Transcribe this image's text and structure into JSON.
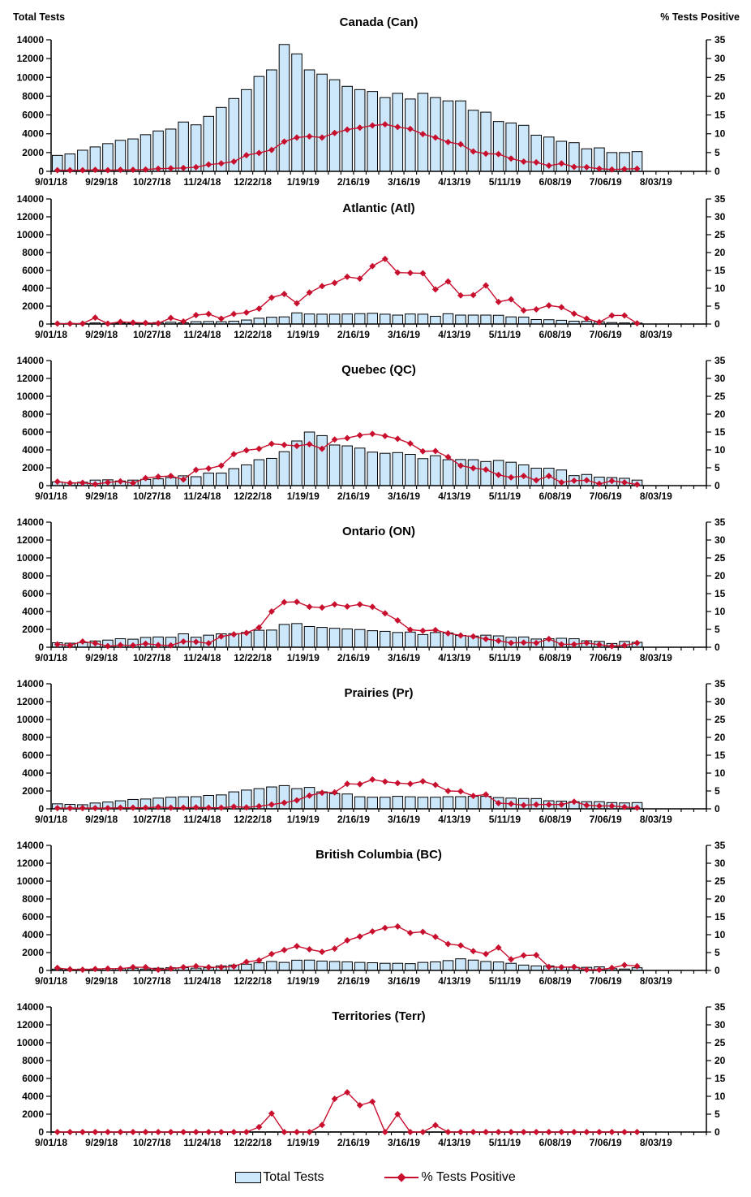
{
  "colors": {
    "background": "#FFFFFF",
    "bar_fill": "#CDE7FA",
    "bar_stroke": "#000000",
    "line": "#C8102E",
    "axis": "#000000",
    "text": "#000000"
  },
  "legend": {
    "total_tests_label": "Total Tests",
    "pct_positive_label": "% Tests Positive"
  },
  "axis_config": {
    "left_title": "Total Tests",
    "right_title": "% Tests Positive",
    "left_min": 0,
    "left_max": 14000,
    "left_tick_step": 2000,
    "right_min": 0,
    "right_max": 35,
    "right_tick_step": 5,
    "weeks_total": 52,
    "x_tick_labels": [
      "9/01/18",
      "9/29/18",
      "10/27/18",
      "11/24/18",
      "12/22/18",
      "1/19/19",
      "2/16/19",
      "3/16/19",
      "4/13/19",
      "5/11/19",
      "6/08/19",
      "7/06/19",
      "8/03/19"
    ],
    "week_start_dates": [
      "9/01/18",
      "9/08/18",
      "9/15/18",
      "9/22/18",
      "9/29/18",
      "10/06/18",
      "10/13/18",
      "10/20/18",
      "10/27/18",
      "11/03/18",
      "11/10/18",
      "11/17/18",
      "11/24/18",
      "12/01/18",
      "12/08/18",
      "12/15/18",
      "12/22/18",
      "12/29/18",
      "1/05/19",
      "1/12/19",
      "1/19/19",
      "1/26/19",
      "2/02/19",
      "2/09/19",
      "2/16/19",
      "2/23/19",
      "3/02/19",
      "3/09/19",
      "3/16/19",
      "3/23/19",
      "3/30/19",
      "4/06/19",
      "4/13/19",
      "4/20/19",
      "4/27/19",
      "5/04/19",
      "5/11/19",
      "5/18/19",
      "5/25/19",
      "6/01/19",
      "6/08/19",
      "6/15/19",
      "6/22/19",
      "6/29/19",
      "7/06/19",
      "7/13/19",
      "7/20/19"
    ]
  },
  "chart_data": [
    {
      "type": "bar",
      "title": "Canada (Can)",
      "bar_series_name": "Total Tests",
      "line_series_name": "% Tests Positive",
      "bars": [
        1700,
        1850,
        2250,
        2600,
        2950,
        3300,
        3450,
        3900,
        4300,
        4500,
        5250,
        4950,
        5850,
        6800,
        7750,
        8700,
        10100,
        10800,
        13500,
        12500,
        10800,
        10350,
        9750,
        9050,
        8700,
        8500,
        7850,
        8300,
        7700,
        8300,
        7850,
        7500,
        7500,
        6500,
        6300,
        5300,
        5150,
        4900,
        3850,
        3650,
        3200,
        3050,
        2400,
        2500,
        2000,
        2000,
        2100
      ],
      "line": [
        0.3,
        0.3,
        0.3,
        0.4,
        0.3,
        0.4,
        0.4,
        0.5,
        0.7,
        0.8,
        0.9,
        1.1,
        1.8,
        2.1,
        2.6,
        4.3,
        4.9,
        5.7,
        7.9,
        9.0,
        9.3,
        9.0,
        10.2,
        11.1,
        11.6,
        12.2,
        12.5,
        11.8,
        11.3,
        9.9,
        9.0,
        7.8,
        7.2,
        5.3,
        4.7,
        4.6,
        3.4,
        2.6,
        2.4,
        1.5,
        2.1,
        1.2,
        1.1,
        0.7,
        0.5,
        0.6,
        0.7
      ]
    },
    {
      "type": "bar",
      "title": "Atlantic (Atl)",
      "bar_series_name": "Total Tests",
      "line_series_name": "% Tests Positive",
      "bars": [
        60,
        70,
        60,
        120,
        70,
        110,
        90,
        90,
        160,
        200,
        130,
        260,
        280,
        260,
        310,
        450,
        650,
        760,
        800,
        1250,
        1120,
        1100,
        1100,
        1120,
        1160,
        1200,
        1100,
        1000,
        1120,
        1100,
        870,
        1150,
        1000,
        1000,
        1000,
        980,
        800,
        780,
        500,
        480,
        420,
        320,
        300,
        250,
        160,
        120,
        110
      ],
      "line": [
        0.1,
        0.1,
        0.1,
        1.8,
        0.1,
        0.6,
        0.4,
        0.3,
        0.2,
        1.7,
        0.7,
        2.5,
        2.8,
        1.5,
        2.8,
        3.2,
        4.3,
        7.4,
        8.4,
        5.8,
        8.8,
        10.6,
        11.5,
        13.2,
        12.7,
        16.2,
        18.2,
        14.4,
        14.3,
        14.2,
        9.7,
        11.9,
        8.0,
        8.1,
        10.8,
        6.2,
        6.9,
        3.8,
        4.1,
        5.2,
        4.7,
        2.9,
        1.5,
        0.5,
        2.4,
        2.4,
        0.2
      ]
    },
    {
      "type": "bar",
      "title": "Quebec (QC)",
      "bar_series_name": "Total Tests",
      "line_series_name": "% Tests Positive",
      "bars": [
        420,
        320,
        380,
        620,
        650,
        520,
        620,
        700,
        760,
        900,
        1100,
        1000,
        1400,
        1400,
        1900,
        2320,
        2900,
        3050,
        3800,
        5000,
        6000,
        5600,
        4550,
        4450,
        4200,
        3750,
        3620,
        3700,
        3500,
        3020,
        3350,
        2900,
        2920,
        2900,
        2700,
        2820,
        2620,
        2320,
        1950,
        1950,
        1750,
        1120,
        1250,
        950,
        900,
        820,
        620
      ],
      "line": [
        1.1,
        0.7,
        0.8,
        0.4,
        0.9,
        1.2,
        0.7,
        2.1,
        2.5,
        2.7,
        1.7,
        4.4,
        4.8,
        5.6,
        8.8,
        9.9,
        10.3,
        11.7,
        11.4,
        11.1,
        11.6,
        10.3,
        12.9,
        13.3,
        14.1,
        14.5,
        13.9,
        13.1,
        11.8,
        9.6,
        9.7,
        8.0,
        5.6,
        4.9,
        4.5,
        3.0,
        2.3,
        2.7,
        1.5,
        2.7,
        0.9,
        1.4,
        1.5,
        0.5,
        1.3,
        0.9,
        0.3
      ]
    },
    {
      "type": "bar",
      "title": "Ontario (ON)",
      "bar_series_name": "Total Tests",
      "line_series_name": "% Tests Positive",
      "bars": [
        500,
        450,
        520,
        700,
        800,
        950,
        900,
        1100,
        1150,
        1120,
        1500,
        1120,
        1350,
        1500,
        1520,
        1650,
        1900,
        1920,
        2550,
        2650,
        2320,
        2220,
        2120,
        2050,
        1980,
        1850,
        1780,
        1650,
        1700,
        1420,
        1650,
        1600,
        1320,
        1250,
        1350,
        1270,
        1120,
        1150,
        920,
        950,
        1000,
        950,
        720,
        650,
        420,
        650,
        550
      ],
      "line": [
        0.8,
        0.5,
        1.6,
        1.1,
        0.3,
        0.6,
        0.5,
        1.0,
        0.6,
        0.5,
        1.6,
        1.5,
        1.1,
        3.0,
        3.6,
        4.0,
        5.5,
        10.0,
        12.6,
        12.7,
        11.3,
        11.1,
        12.0,
        11.4,
        12.0,
        11.3,
        9.5,
        7.5,
        4.9,
        4.6,
        4.8,
        3.9,
        3.3,
        3.0,
        2.3,
        1.8,
        1.2,
        1.3,
        1.2,
        2.3,
        0.8,
        0.8,
        1.2,
        0.7,
        0.3,
        0.5,
        1.2
      ]
    },
    {
      "type": "bar",
      "title": "Prairies (Pr)",
      "bar_series_name": "Total Tests",
      "line_series_name": "% Tests Positive",
      "bars": [
        560,
        500,
        460,
        650,
        760,
        900,
        1050,
        1100,
        1200,
        1300,
        1350,
        1360,
        1500,
        1560,
        1900,
        2100,
        2260,
        2450,
        2600,
        2260,
        2400,
        1900,
        1700,
        1660,
        1350,
        1300,
        1300,
        1400,
        1350,
        1300,
        1300,
        1360,
        1360,
        1400,
        1400,
        1260,
        1200,
        1160,
        1150,
        900,
        860,
        800,
        800,
        800,
        700,
        660,
        700
      ],
      "line": [
        0.2,
        0.2,
        0.2,
        0.2,
        0.2,
        0.3,
        0.3,
        0.3,
        0.5,
        0.3,
        0.3,
        0.4,
        0.3,
        0.3,
        0.6,
        0.4,
        0.7,
        1.2,
        1.7,
        2.4,
        3.7,
        4.5,
        4.6,
        7.0,
        6.9,
        8.2,
        7.6,
        7.2,
        7.0,
        7.7,
        6.7,
        5.0,
        4.9,
        3.6,
        4.0,
        1.6,
        1.4,
        1.0,
        1.2,
        1.2,
        1.2,
        2.0,
        1.0,
        0.8,
        0.8,
        0.5,
        0.3
      ]
    },
    {
      "type": "bar",
      "title": "British Columbia (BC)",
      "bar_series_name": "Total Tests",
      "line_series_name": "% Tests Positive",
      "bars": [
        150,
        110,
        150,
        160,
        200,
        210,
        250,
        160,
        250,
        300,
        310,
        260,
        300,
        500,
        600,
        700,
        850,
        1000,
        900,
        1150,
        1160,
        1050,
        1000,
        960,
        900,
        860,
        800,
        800,
        760,
        900,
        960,
        1100,
        1300,
        1160,
        1000,
        950,
        800,
        600,
        500,
        500,
        360,
        350,
        350,
        400,
        200,
        160,
        300
      ],
      "line": [
        0.7,
        0.3,
        0.2,
        0.4,
        0.5,
        0.5,
        0.9,
        0.9,
        0.2,
        0.5,
        0.9,
        1.2,
        0.9,
        0.9,
        1.1,
        2.4,
        2.8,
        4.6,
        5.7,
        6.8,
        5.9,
        5.2,
        6.1,
        8.4,
        9.5,
        10.9,
        11.9,
        12.3,
        10.5,
        10.8,
        9.4,
        7.4,
        7.0,
        5.4,
        4.6,
        6.4,
        3.1,
        4.2,
        4.3,
        1.0,
        0.9,
        1.0,
        0.2,
        0.2,
        0.7,
        1.5,
        1.2
      ]
    },
    {
      "type": "bar",
      "title": "Territories (Terr)",
      "bar_series_name": "Total Tests",
      "line_series_name": "% Tests Positive",
      "bars": [
        10,
        8,
        10,
        12,
        10,
        10,
        12,
        10,
        12,
        15,
        12,
        15,
        18,
        15,
        20,
        22,
        25,
        28,
        25,
        22,
        25,
        28,
        30,
        30,
        28,
        25,
        22,
        20,
        18,
        15,
        15,
        12,
        12,
        10,
        10,
        10,
        8,
        8,
        8,
        8,
        8,
        8,
        5,
        5,
        5,
        5,
        5
      ],
      "line": [
        0,
        0,
        0,
        0,
        0,
        0,
        0,
        0,
        0,
        0,
        0,
        0,
        0,
        0,
        0,
        0,
        1.4,
        5.2,
        0,
        0,
        0,
        2.0,
        9.3,
        11.1,
        7.5,
        8.5,
        0,
        5.0,
        0,
        0,
        1.9,
        0,
        0,
        0,
        0,
        0,
        0,
        0,
        0,
        0,
        0,
        0,
        0,
        0,
        0,
        0,
        0
      ]
    }
  ]
}
